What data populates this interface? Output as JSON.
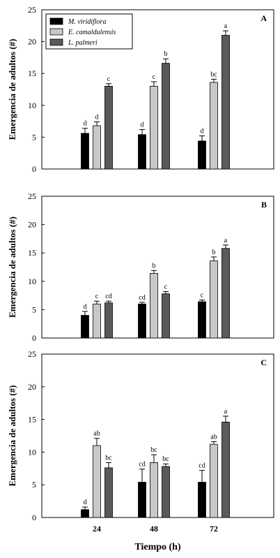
{
  "chart_data": [
    {
      "type": "bar",
      "panel": "A",
      "ylabel": "Emergencia de adultos (#)",
      "xlabel": "",
      "ylim": [
        0,
        25
      ],
      "yticks": [
        0,
        5,
        10,
        15,
        20,
        25
      ],
      "categories": [
        "24",
        "48",
        "72"
      ],
      "show_x_ticklabels": false,
      "legend": {
        "position": "top-left",
        "entries": [
          "M. viridiflora",
          "E. camaldulensis",
          "L. palmeri"
        ]
      },
      "series": [
        {
          "name": "M. viridiflora",
          "color": "#000000",
          "values": [
            5.6,
            5.4,
            4.4
          ],
          "errors": [
            0.8,
            0.8,
            0.8
          ],
          "letters": [
            "d",
            "d",
            "d"
          ]
        },
        {
          "name": "E. camaldulensis",
          "color": "#c8c8c8",
          "values": [
            6.8,
            13.0,
            13.6
          ],
          "errors": [
            0.6,
            0.7,
            0.5
          ],
          "letters": [
            "d",
            "c",
            "bc"
          ]
        },
        {
          "name": "L. palmeri",
          "color": "#5a5a5a",
          "values": [
            13.0,
            16.6,
            21.0
          ],
          "errors": [
            0.4,
            0.7,
            0.7
          ],
          "letters": [
            "c",
            "b",
            "a"
          ]
        }
      ]
    },
    {
      "type": "bar",
      "panel": "B",
      "ylabel": "Emergencia de adultos (#)",
      "xlabel": "",
      "ylim": [
        0,
        25
      ],
      "yticks": [
        0,
        5,
        10,
        15,
        20,
        25
      ],
      "categories": [
        "24",
        "48",
        "72"
      ],
      "show_x_ticklabels": false,
      "series": [
        {
          "name": "M. viridiflora",
          "color": "#000000",
          "values": [
            4.0,
            6.0,
            6.4
          ],
          "errors": [
            0.7,
            0.3,
            0.3
          ],
          "letters": [
            "d",
            "cd",
            "c"
          ]
        },
        {
          "name": "E. camaldulensis",
          "color": "#c8c8c8",
          "values": [
            6.0,
            11.4,
            13.6
          ],
          "errors": [
            0.5,
            0.5,
            0.7
          ],
          "letters": [
            "c",
            "b",
            "b"
          ]
        },
        {
          "name": "L. palmeri",
          "color": "#5a5a5a",
          "values": [
            6.2,
            7.8,
            15.8
          ],
          "errors": [
            0.3,
            0.4,
            0.6
          ],
          "letters": [
            "cd",
            "c",
            "a"
          ]
        }
      ]
    },
    {
      "type": "bar",
      "panel": "C",
      "ylabel": "Emergencia de adultos (#)",
      "xlabel": "Tiempo (h)",
      "ylim": [
        0,
        25
      ],
      "yticks": [
        0,
        5,
        10,
        15,
        20,
        25
      ],
      "categories": [
        "24",
        "48",
        "72"
      ],
      "show_x_ticklabels": true,
      "series": [
        {
          "name": "M. viridiflora",
          "color": "#000000",
          "values": [
            1.2,
            5.4,
            5.4
          ],
          "errors": [
            0.4,
            2.0,
            1.8
          ],
          "letters": [
            "d",
            "cd",
            "cd"
          ]
        },
        {
          "name": "E. camaldulensis",
          "color": "#c8c8c8",
          "values": [
            11.0,
            8.4,
            11.2
          ],
          "errors": [
            1.1,
            1.2,
            0.4
          ],
          "letters": [
            "ab",
            "bc",
            "ab"
          ]
        },
        {
          "name": "L. palmeri",
          "color": "#5a5a5a",
          "values": [
            7.6,
            7.8,
            14.6
          ],
          "errors": [
            0.8,
            0.4,
            0.9
          ],
          "letters": [
            "bc",
            "bc",
            "a"
          ]
        }
      ]
    }
  ]
}
